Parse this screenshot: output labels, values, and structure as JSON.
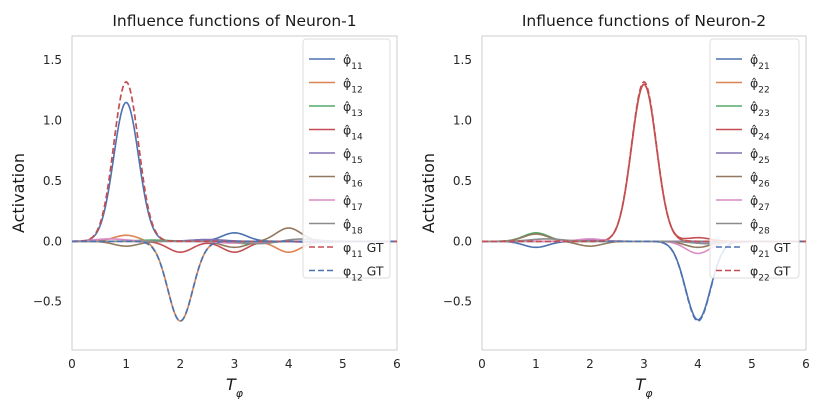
{
  "chart_data": [
    {
      "type": "line",
      "title": "Influence functions of Neuron-1",
      "xlabel": "T_φ",
      "ylabel": "Activation",
      "xlim": [
        0,
        6
      ],
      "ylim": [
        -0.9,
        1.7
      ],
      "xticks": [
        0,
        1,
        2,
        3,
        4,
        5,
        6
      ],
      "yticks": [
        -0.5,
        0.0,
        0.5,
        1.0,
        1.5
      ],
      "legend_position": "right",
      "series": [
        {
          "name": "φ̂11",
          "color": "#4c72b0",
          "dash": "solid",
          "bumps": [
            [
              1.0,
              0.23,
              1.15
            ],
            [
              3.0,
              0.23,
              0.07
            ]
          ]
        },
        {
          "name": "φ̂12",
          "color": "#dd8452",
          "dash": "solid",
          "bumps": [
            [
              1.0,
              0.23,
              0.05
            ],
            [
              2.0,
              0.23,
              -0.66
            ],
            [
              4.0,
              0.23,
              -0.09
            ]
          ]
        },
        {
          "name": "φ̂13",
          "color": "#55a868",
          "dash": "solid",
          "bumps": [
            [
              1.5,
              0.3,
              0.01
            ],
            [
              3.3,
              0.3,
              -0.02
            ]
          ]
        },
        {
          "name": "φ̂14",
          "color": "#c44e52",
          "dash": "solid",
          "bumps": [
            [
              2.0,
              0.23,
              -0.09
            ],
            [
              3.0,
              0.23,
              -0.09
            ]
          ]
        },
        {
          "name": "φ̂15",
          "color": "#8172b3",
          "dash": "solid",
          "bumps": [
            [
              2.5,
              0.3,
              0.015
            ],
            [
              4.5,
              0.3,
              -0.01
            ]
          ]
        },
        {
          "name": "φ̂16",
          "color": "#937860",
          "dash": "solid",
          "bumps": [
            [
              1.0,
              0.23,
              -0.04
            ],
            [
              3.0,
              0.23,
              -0.05
            ],
            [
              4.0,
              0.23,
              0.11
            ]
          ]
        },
        {
          "name": "φ̂17",
          "color": "#da8bc3",
          "dash": "solid",
          "bumps": [
            [
              0.7,
              0.3,
              0.02
            ],
            [
              3.0,
              0.3,
              -0.015
            ]
          ]
        },
        {
          "name": "φ̂18",
          "color": "#8c8c8c",
          "dash": "solid",
          "bumps": [
            [
              3.5,
              0.3,
              -0.02
            ],
            [
              4.2,
              0.3,
              0.02
            ]
          ]
        },
        {
          "name": "φ11 GT",
          "color": "#c44e52",
          "dash": "dashed",
          "bumps": [
            [
              1.0,
              0.23,
              1.32
            ]
          ]
        },
        {
          "name": "φ12 GT",
          "color": "#4c72b0",
          "dash": "dashed",
          "bumps": [
            [
              2.0,
              0.23,
              -0.66
            ]
          ]
        }
      ]
    },
    {
      "type": "line",
      "title": "Influence functions of Neuron-2",
      "xlabel": "T_φ",
      "ylabel": "Activation",
      "xlim": [
        0,
        6
      ],
      "ylim": [
        -0.9,
        1.7
      ],
      "xticks": [
        0,
        1,
        2,
        3,
        4,
        5,
        6
      ],
      "yticks": [
        -0.5,
        0.0,
        0.5,
        1.0,
        1.5
      ],
      "legend_position": "right",
      "series": [
        {
          "name": "φ̂21",
          "color": "#4c72b0",
          "dash": "solid",
          "bumps": [
            [
              1.0,
              0.23,
              -0.05
            ],
            [
              4.0,
              0.23,
              -0.65
            ]
          ]
        },
        {
          "name": "φ̂22",
          "color": "#dd8452",
          "dash": "solid",
          "bumps": [
            [
              3.0,
              0.23,
              1.3
            ]
          ]
        },
        {
          "name": "φ̂23",
          "color": "#55a868",
          "dash": "solid",
          "bumps": [
            [
              1.0,
              0.23,
              0.07
            ]
          ]
        },
        {
          "name": "φ̂24",
          "color": "#c44e52",
          "dash": "solid",
          "bumps": [
            [
              3.0,
              0.23,
              1.3
            ],
            [
              4.0,
              0.23,
              0.03
            ]
          ]
        },
        {
          "name": "φ̂25",
          "color": "#8172b3",
          "dash": "solid",
          "bumps": [
            [
              2.0,
              0.3,
              0.01
            ],
            [
              4.5,
              0.3,
              -0.01
            ]
          ]
        },
        {
          "name": "φ̂26",
          "color": "#937860",
          "dash": "solid",
          "bumps": [
            [
              1.0,
              0.23,
              0.06
            ],
            [
              2.0,
              0.23,
              -0.04
            ],
            [
              4.0,
              0.23,
              -0.05
            ]
          ]
        },
        {
          "name": "φ̂27",
          "color": "#da8bc3",
          "dash": "solid",
          "bumps": [
            [
              2.0,
              0.23,
              0.02
            ],
            [
              4.0,
              0.23,
              -0.1
            ]
          ]
        },
        {
          "name": "φ̂28",
          "color": "#8c8c8c",
          "dash": "solid",
          "bumps": [
            [
              1.2,
              0.3,
              0.02
            ],
            [
              4.2,
              0.3,
              -0.02
            ]
          ]
        },
        {
          "name": "φ21 GT",
          "color": "#4c72b0",
          "dash": "dashed",
          "bumps": [
            [
              4.0,
              0.23,
              -0.66
            ]
          ]
        },
        {
          "name": "φ22 GT",
          "color": "#c44e52",
          "dash": "dashed",
          "bumps": [
            [
              3.0,
              0.23,
              1.32
            ]
          ]
        }
      ]
    }
  ]
}
